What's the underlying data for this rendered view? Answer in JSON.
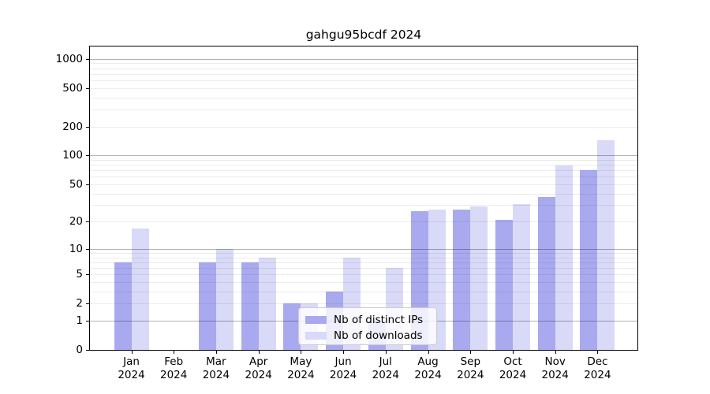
{
  "chart_data": {
    "type": "bar",
    "title": "gahgu95bcdf 2024",
    "categories": [
      "Jan",
      "Feb",
      "Mar",
      "Apr",
      "May",
      "Jun",
      "Jul",
      "Aug",
      "Sep",
      "Oct",
      "Nov",
      "Dec"
    ],
    "x_axis": {
      "year_label": "2024"
    },
    "y_axis": {
      "scale": "log10(1+value)",
      "tick_values": [
        0,
        1,
        2,
        5,
        10,
        20,
        50,
        100,
        200,
        500,
        1000
      ],
      "top_value": 1000
    },
    "grid": {
      "shown": true,
      "major_values": [
        1,
        10,
        100,
        1000
      ],
      "minor_values": [
        2,
        3,
        4,
        5,
        6,
        7,
        8,
        9,
        20,
        30,
        40,
        50,
        60,
        70,
        80,
        90,
        200,
        300,
        400,
        500,
        600,
        700,
        800,
        900
      ]
    },
    "series": [
      {
        "name": "Nb of distinct IPs",
        "key": "distinct-ips",
        "color": "#a9a9f0",
        "values": [
          7,
          0,
          7,
          7,
          2,
          3,
          1,
          26,
          27,
          21,
          37,
          70
        ]
      },
      {
        "name": "Nb of downloads",
        "key": "downloads",
        "color": "#d9d9f8",
        "values": [
          17,
          0,
          10,
          8,
          2,
          8,
          6,
          27,
          29,
          31,
          78,
          145
        ]
      }
    ],
    "legend": {
      "position": "bottom-center"
    }
  },
  "colors": {
    "bar_distinct_ips": "#a9a9f0",
    "bar_downloads": "#d9d9f8",
    "major_gridline": "#b3b3b3",
    "minor_gridline": "#ececec",
    "spine": "#000000",
    "text": "#000000",
    "background": "#ffffff",
    "legend_border": "#cccccc"
  }
}
